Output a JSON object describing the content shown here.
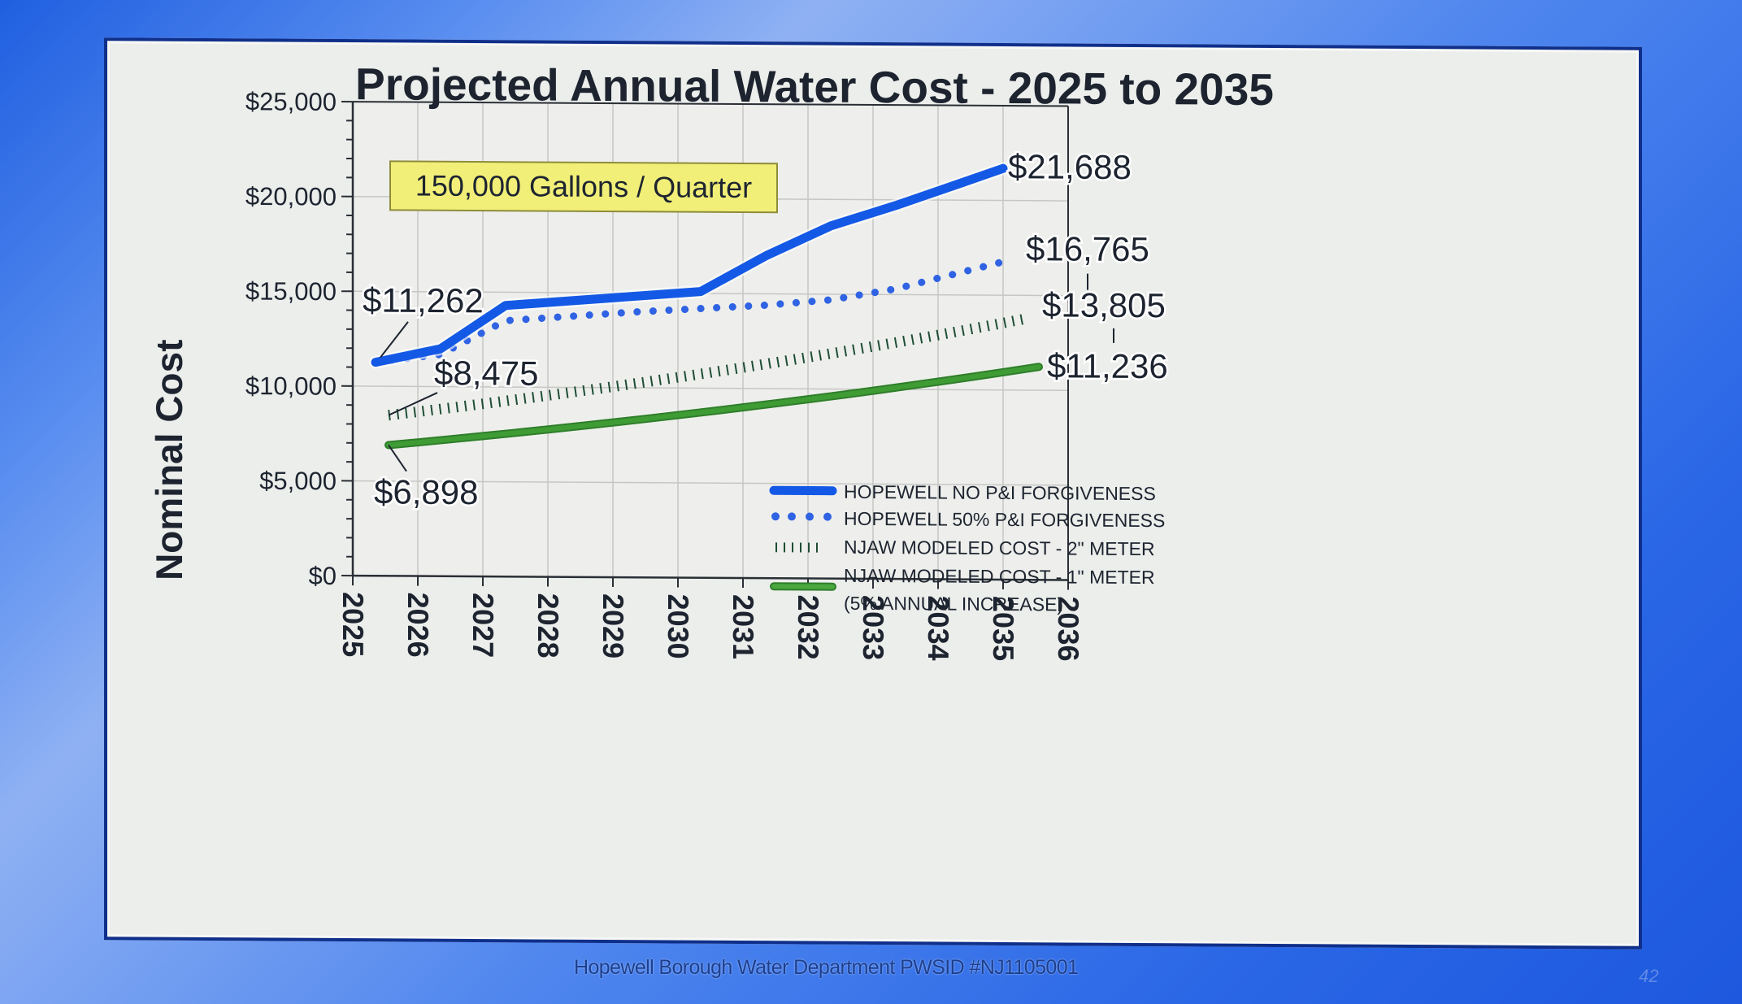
{
  "slide": {
    "footer": "Hopewell Borough Water Department PWSID #NJ1105001",
    "page_number": "42"
  },
  "chart_data": {
    "type": "line",
    "title": "Projected Annual Water Cost - 2025 to 2035",
    "annotation_box": "150,000 Gallons / Quarter",
    "xlabel": "",
    "ylabel": "Nominal Cost",
    "xlim": [
      2025,
      2036
    ],
    "ylim": [
      0,
      25000
    ],
    "x_ticks": [
      "2025",
      "2026",
      "2027",
      "2028",
      "2029",
      "2030",
      "2031",
      "2032",
      "2033",
      "2034",
      "2035",
      "2036"
    ],
    "y_ticks": [
      "$0",
      "$5,000",
      "$10,000",
      "$15,000",
      "$20,000",
      "$25,000"
    ],
    "y_tick_values": [
      0,
      5000,
      10000,
      15000,
      20000,
      25000
    ],
    "y_minor_step": 1000,
    "grid": true,
    "legend_position": "bottom-right",
    "colors": {
      "blue": "#1459e6",
      "dotted_blue": "#2f63e3",
      "dark_green_ticks": "#1e4d35",
      "green": "#3f9c35",
      "annotation_fill": "#f1ef78",
      "text": "#1d2430"
    },
    "series": [
      {
        "name": "HOPEWELL NO P&I FORGIVENESS",
        "style": "solid",
        "x": [
          2025.35,
          2026.35,
          2027.35,
          2030.35,
          2031.35,
          2032.35,
          2033.35,
          2034.35,
          2035
        ],
        "values": [
          11262,
          12000,
          14300,
          15100,
          17000,
          18600,
          19700,
          20900,
          21688
        ],
        "end_label": "$21,688",
        "start_label": "$11,262"
      },
      {
        "name": "HOPEWELL 50% P&I FORGIVENESS",
        "style": "dotted",
        "x": [
          2025.35,
          2026.35,
          2027.35,
          2029.35,
          2031.35,
          2032.35,
          2033.35,
          2035
        ],
        "values": [
          11262,
          11700,
          13500,
          14000,
          14400,
          14700,
          15300,
          16765
        ],
        "end_label": "$16,765"
      },
      {
        "name": "NJAW MODELED COST - 2\" METER",
        "style": "ticks",
        "x": [
          2025.55,
          2035.4
        ],
        "values": [
          8475,
          13805
        ],
        "start_label": "$8,475",
        "end_label": "$13,805"
      },
      {
        "name": "NJAW MODELED COST - 1\" METER (5% ANNUAL INCREASE)",
        "legend_lines": [
          "NJAW MODELED COST - 1\" METER",
          "(5% ANNUAL INCREASE)"
        ],
        "style": "solid-green",
        "growth_rate": 0.05,
        "x": [
          2025.55,
          2035.55
        ],
        "values": [
          6898,
          11236
        ],
        "start_label": "$6,898",
        "end_label": "$11,236"
      }
    ]
  }
}
